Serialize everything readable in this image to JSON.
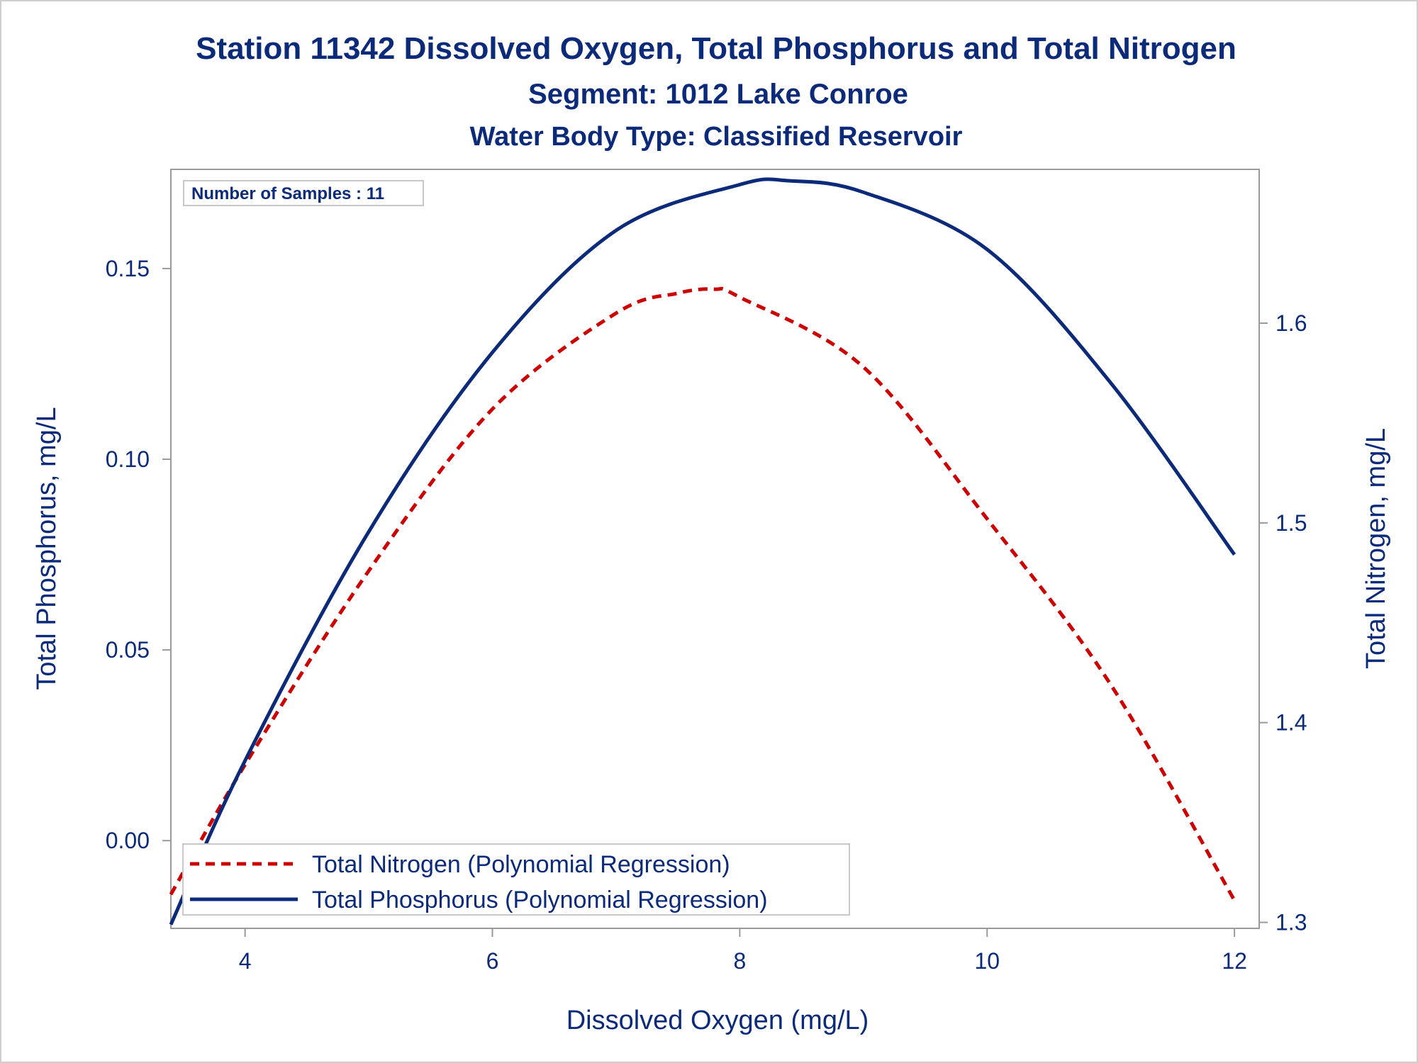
{
  "chart_data": {
    "type": "line",
    "title": "Station 11342  Dissolved Oxygen, Total Phosphorus and Total Nitrogen",
    "subtitle": "Segment: 1012  Lake Conroe",
    "subtitle2": "Water Body Type: Classified Reservoir",
    "xlabel": "Dissolved Oxygen (mg/L)",
    "ylabel_left": "Total Phosphorus, mg/L",
    "ylabel_right": "Total Nitrogen, mg/L",
    "xlim": [
      3.4,
      12.2
    ],
    "ylim_left": [
      -0.023,
      0.176
    ],
    "ylim_right": [
      1.297,
      1.677
    ],
    "x_ticks": [
      "4",
      "6",
      "8",
      "10",
      "12"
    ],
    "x_tick_values": [
      4,
      6,
      8,
      10,
      12
    ],
    "y_left_ticks": [
      "0.00",
      "0.05",
      "0.10",
      "0.15"
    ],
    "y_left_tick_values": [
      0.0,
      0.05,
      0.1,
      0.15
    ],
    "y_right_ticks": [
      "1.3",
      "1.4",
      "1.5",
      "1.6"
    ],
    "y_right_tick_values": [
      1.3,
      1.4,
      1.5,
      1.6
    ],
    "inset": "Number of Samples : 11",
    "legend_position": "bottom-left",
    "grid": false,
    "colors": {
      "nitrogen": "#cc0000",
      "phosphorus": "#0b2a7a",
      "axis": "#9a9a9a",
      "text": "#0b2a7a"
    },
    "series": [
      {
        "name": "Total Nitrogen (Polynomial Regression)",
        "axis": "right",
        "style": "dashed",
        "x": [
          3.4,
          4.0,
          5.0,
          6.0,
          7.0,
          7.5,
          7.8,
          8.0,
          9.0,
          10.0,
          11.0,
          12.0
        ],
        "y": [
          1.314,
          1.379,
          1.476,
          1.557,
          1.605,
          1.615,
          1.617,
          1.613,
          1.578,
          1.502,
          1.419,
          1.311
        ]
      },
      {
        "name": "Total Phosphorus (Polynomial Regression)",
        "axis": "left",
        "style": "solid",
        "x": [
          3.4,
          4.0,
          5.0,
          6.0,
          7.0,
          8.0,
          8.4,
          9.0,
          10.0,
          11.0,
          12.0
        ],
        "y": [
          -0.022,
          0.021,
          0.081,
          0.128,
          0.16,
          0.172,
          0.173,
          0.17,
          0.155,
          0.12,
          0.075
        ]
      }
    ]
  }
}
